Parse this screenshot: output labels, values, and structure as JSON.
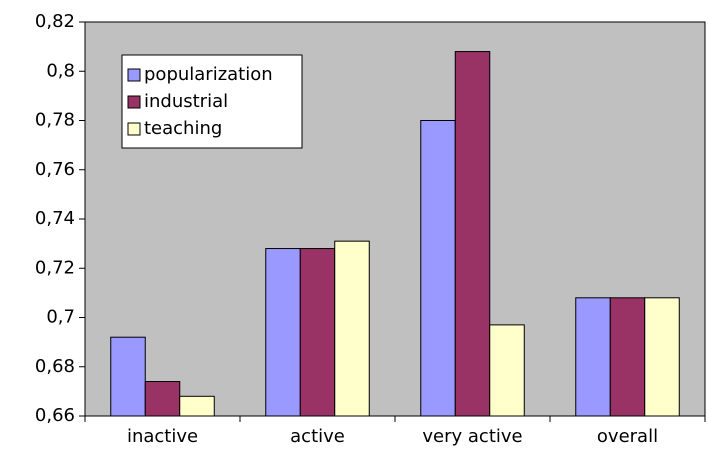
{
  "chart_data": {
    "type": "bar",
    "categories": [
      "inactive",
      "active",
      "very active",
      "overall"
    ],
    "series": [
      {
        "name": "popularization",
        "color": "#9999ff",
        "values": [
          0.692,
          0.728,
          0.78,
          0.708
        ]
      },
      {
        "name": "industrial",
        "color": "#993366",
        "values": [
          0.674,
          0.728,
          0.808,
          0.708
        ]
      },
      {
        "name": "teaching",
        "color": "#ffffcc",
        "values": [
          0.668,
          0.731,
          0.697,
          0.708
        ]
      }
    ],
    "ylim": [
      0.66,
      0.82
    ],
    "yticks": [
      {
        "value": 0.66,
        "label": "0,66"
      },
      {
        "value": 0.68,
        "label": "0,68"
      },
      {
        "value": 0.7,
        "label": "0,7"
      },
      {
        "value": 0.72,
        "label": "0,72"
      },
      {
        "value": 0.74,
        "label": "0,74"
      },
      {
        "value": 0.76,
        "label": "0,76"
      },
      {
        "value": 0.78,
        "label": "0,78"
      },
      {
        "value": 0.8,
        "label": "0,8"
      },
      {
        "value": 0.82,
        "label": "0,82"
      }
    ],
    "legend": "upper left"
  }
}
